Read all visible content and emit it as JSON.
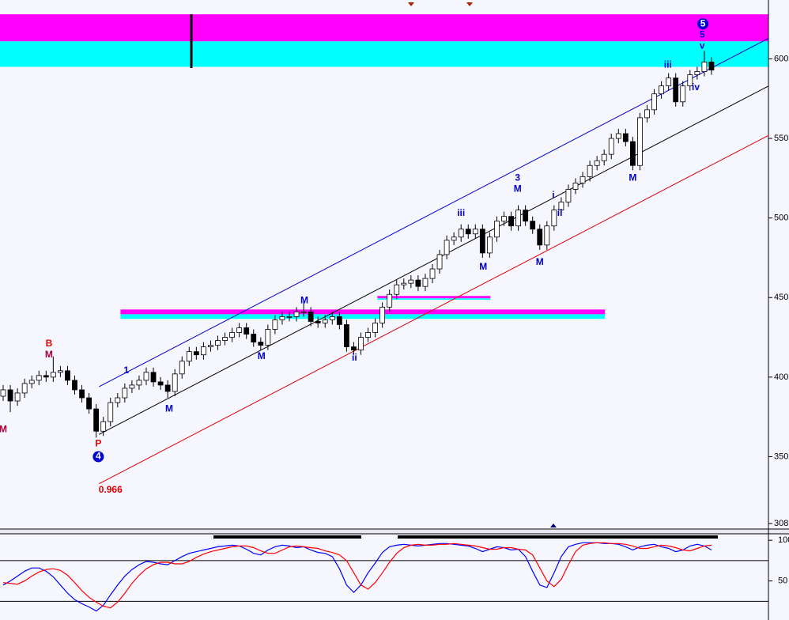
{
  "chart_data": [
    {
      "type": "candlestick",
      "open": [
        388,
        392,
        385,
        390,
        396,
        398,
        401,
        400,
        403,
        404,
        398,
        392,
        387,
        380,
        366,
        372,
        384,
        387,
        393,
        395,
        398,
        403,
        397,
        395,
        391,
        402,
        410,
        416,
        414,
        419,
        420,
        423,
        425,
        428,
        431,
        427,
        422,
        420,
        430,
        436,
        438,
        438,
        441,
        441,
        435,
        434,
        436,
        438,
        433,
        419,
        417,
        425,
        428,
        434,
        444,
        452,
        458,
        459,
        461,
        457,
        462,
        468,
        477,
        486,
        488,
        493,
        490,
        493,
        478,
        488,
        498,
        501,
        495,
        505,
        498,
        493,
        483,
        495,
        505,
        510,
        518,
        522,
        526,
        533,
        536,
        540,
        550,
        553,
        548,
        533,
        563,
        568,
        578,
        583,
        588,
        573,
        583,
        590,
        592,
        598
      ],
      "high": [
        395,
        395,
        393,
        399,
        401,
        404,
        404,
        413,
        407,
        407,
        401,
        395,
        390,
        383,
        375,
        387,
        390,
        396,
        398,
        401,
        406,
        406,
        400,
        398,
        405,
        413,
        419,
        419,
        422,
        423,
        426,
        428,
        431,
        434,
        434,
        430,
        425,
        433,
        439,
        441,
        441,
        444,
        448,
        444,
        438,
        439,
        441,
        441,
        436,
        422,
        428,
        431,
        437,
        447,
        455,
        461,
        462,
        464,
        464,
        465,
        471,
        480,
        489,
        491,
        496,
        496,
        496,
        496,
        491,
        501,
        504,
        504,
        508,
        508,
        501,
        496,
        498,
        508,
        513,
        521,
        525,
        529,
        536,
        539,
        543,
        553,
        556,
        556,
        551,
        566,
        571,
        581,
        586,
        591,
        591,
        586,
        593,
        595,
        605,
        601
      ],
      "low": [
        385,
        378,
        382,
        387,
        393,
        395,
        397,
        397,
        400,
        395,
        389,
        384,
        377,
        362,
        363,
        369,
        381,
        384,
        390,
        392,
        395,
        394,
        392,
        387,
        388,
        399,
        407,
        411,
        411,
        416,
        417,
        420,
        422,
        425,
        424,
        419,
        417,
        417,
        427,
        433,
        435,
        435,
        438,
        432,
        431,
        431,
        433,
        430,
        416,
        414,
        414,
        422,
        425,
        431,
        441,
        449,
        455,
        456,
        454,
        454,
        459,
        465,
        474,
        483,
        485,
        487,
        487,
        475,
        475,
        485,
        495,
        492,
        492,
        495,
        490,
        480,
        480,
        492,
        502,
        507,
        515,
        519,
        523,
        530,
        533,
        537,
        547,
        545,
        530,
        530,
        560,
        565,
        575,
        580,
        570,
        570,
        580,
        587,
        589,
        590
      ],
      "close": [
        392,
        385,
        390,
        396,
        398,
        401,
        400,
        403,
        404,
        398,
        392,
        387,
        380,
        366,
        372,
        384,
        387,
        393,
        395,
        398,
        403,
        397,
        395,
        391,
        402,
        410,
        416,
        414,
        419,
        420,
        423,
        425,
        428,
        431,
        427,
        422,
        420,
        430,
        436,
        438,
        438,
        441,
        441,
        435,
        434,
        436,
        438,
        433,
        419,
        417,
        425,
        428,
        434,
        444,
        452,
        458,
        459,
        461,
        457,
        462,
        468,
        477,
        486,
        488,
        493,
        490,
        493,
        478,
        488,
        498,
        501,
        495,
        505,
        498,
        493,
        483,
        495,
        505,
        510,
        518,
        522,
        526,
        533,
        536,
        540,
        550,
        553,
        548,
        533,
        563,
        568,
        578,
        583,
        588,
        573,
        583,
        590,
        592,
        598,
        593
      ],
      "up_color": "#ffffff",
      "down_color": "#000000",
      "ylim": [
        305,
        637
      ],
      "yticks": [
        308,
        350,
        400,
        450,
        500,
        550,
        600
      ],
      "trendlines": [
        {
          "color": "#0000cc",
          "x": [
            13.4,
            107
          ],
          "y": [
            394,
            613
          ]
        },
        {
          "color": "#000000",
          "x": [
            13.4,
            107
          ],
          "y": [
            364,
            583
          ]
        },
        {
          "color": "#dd0000",
          "x": [
            13.4,
            107
          ],
          "y": [
            333,
            552
          ]
        }
      ],
      "zones": [
        {
          "color": "#ff00ff",
          "x": [
            -0.5,
            107
          ],
          "y": [
            628,
            611
          ]
        },
        {
          "color": "#00ffff",
          "x": [
            -0.5,
            107
          ],
          "y": [
            611,
            595
          ]
        },
        {
          "color": "#ff00ff",
          "x": [
            16.4,
            84.1
          ],
          "y": [
            442.5,
            439.5
          ]
        },
        {
          "color": "#00ffff",
          "x": [
            16.4,
            84.1
          ],
          "y": [
            439.5,
            436.6
          ]
        },
        {
          "color": "#ff00ff",
          "x": [
            52.3,
            68.1
          ],
          "y": [
            451,
            449.5
          ]
        },
        {
          "color": "#00ffff",
          "x": [
            52.3,
            68.1
          ],
          "y": [
            449.5,
            448.6
          ]
        }
      ],
      "annotations": [
        {
          "text": "M",
          "x": 0,
          "y": 367,
          "color": "#aa0033"
        },
        {
          "text": "B",
          "x": 6.4,
          "y": 421,
          "color": "#dd0000"
        },
        {
          "text": "M",
          "x": 6.4,
          "y": 414,
          "color": "#aa0033"
        },
        {
          "text": "P",
          "x": 13.3,
          "y": 358,
          "color": "#dd0000"
        },
        {
          "text": "4",
          "x": 13.3,
          "y": 350,
          "color": "#0000cc",
          "circled": true
        },
        {
          "text": "0.966",
          "x": 15,
          "y": 329,
          "color": "#dd0000"
        },
        {
          "text": "1",
          "x": 17.2,
          "y": 404,
          "color": "#0000cc"
        },
        {
          "text": "M",
          "x": 23.2,
          "y": 380,
          "color": "#0000cc"
        },
        {
          "text": "M",
          "x": 36.1,
          "y": 413,
          "color": "#0000cc"
        },
        {
          "text": "M",
          "x": 42.1,
          "y": 448,
          "color": "#0000cc"
        },
        {
          "text": "ii",
          "x": 49.1,
          "y": 412,
          "color": "#0000cc"
        },
        {
          "text": "iii",
          "x": 64,
          "y": 503,
          "color": "#0000cc"
        },
        {
          "text": "M",
          "x": 67.1,
          "y": 469,
          "color": "#0000cc"
        },
        {
          "text": "3",
          "x": 71.9,
          "y": 525,
          "color": "#0000cc"
        },
        {
          "text": "M",
          "x": 71.9,
          "y": 518,
          "color": "#0000cc"
        },
        {
          "text": "M",
          "x": 75,
          "y": 472,
          "color": "#0000cc"
        },
        {
          "text": "i",
          "x": 76.9,
          "y": 514,
          "color": "#0000cc"
        },
        {
          "text": "ii",
          "x": 77.8,
          "y": 503,
          "color": "#0000cc"
        },
        {
          "text": "M",
          "x": 88,
          "y": 525,
          "color": "#0000cc"
        },
        {
          "text": "iii",
          "x": 92.9,
          "y": 596,
          "color": "#0000cc"
        },
        {
          "text": "iv",
          "x": 96.8,
          "y": 582,
          "color": "#0000cc"
        },
        {
          "text": "v",
          "x": 97.7,
          "y": 608,
          "color": "#0000cc"
        },
        {
          "text": "5",
          "x": 97.7,
          "y": 615,
          "color": "#0000cc"
        },
        {
          "text": "5",
          "x": 97.8,
          "y": 622,
          "color": "#0000cc",
          "circled": true
        }
      ]
    },
    {
      "type": "line",
      "series": [
        {
          "color": "#0000ff",
          "values": [
            45,
            50,
            56,
            62,
            66,
            66,
            62,
            55,
            45,
            35,
            27,
            22,
            18,
            13,
            20,
            33,
            45,
            56,
            64,
            70,
            74,
            73,
            71,
            70,
            75,
            80,
            84,
            86,
            88,
            90,
            92,
            93,
            94,
            93,
            89,
            84,
            82,
            88,
            92,
            94,
            93,
            91,
            92,
            88,
            85,
            84,
            80,
            65,
            45,
            36,
            45,
            60,
            72,
            85,
            92,
            94,
            95,
            94,
            93,
            94,
            95,
            96,
            96,
            95,
            94,
            93,
            90,
            86,
            89,
            92,
            91,
            88,
            89,
            80,
            62,
            45,
            42,
            60,
            80,
            92,
            95,
            97,
            97,
            97,
            96,
            96,
            95,
            92,
            88,
            92,
            94,
            95,
            92,
            90,
            86,
            88,
            93,
            95,
            93,
            88
          ]
        },
        {
          "color": "#ff0000",
          "values": [
            48,
            47,
            46,
            50,
            56,
            61,
            64,
            65,
            63,
            57,
            48,
            38,
            30,
            24,
            19,
            17,
            24,
            35,
            47,
            57,
            65,
            70,
            73,
            73,
            71,
            71,
            74,
            79,
            83,
            86,
            88,
            90,
            92,
            93,
            93,
            91,
            87,
            84,
            84,
            88,
            92,
            93,
            92,
            91,
            90,
            87,
            85,
            82,
            75,
            60,
            45,
            40,
            48,
            60,
            73,
            84,
            91,
            94,
            95,
            94,
            94,
            95,
            95,
            96,
            95,
            94,
            93,
            91,
            89,
            89,
            91,
            91,
            89,
            88,
            82,
            66,
            50,
            43,
            52,
            70,
            86,
            94,
            96,
            97,
            97,
            96,
            96,
            95,
            93,
            90,
            90,
            92,
            94,
            93,
            91,
            88,
            87,
            90,
            93,
            94
          ]
        }
      ],
      "ylim": [
        2,
        107
      ],
      "yticks": [
        100,
        50
      ],
      "levels": [
        75,
        25
      ]
    }
  ]
}
